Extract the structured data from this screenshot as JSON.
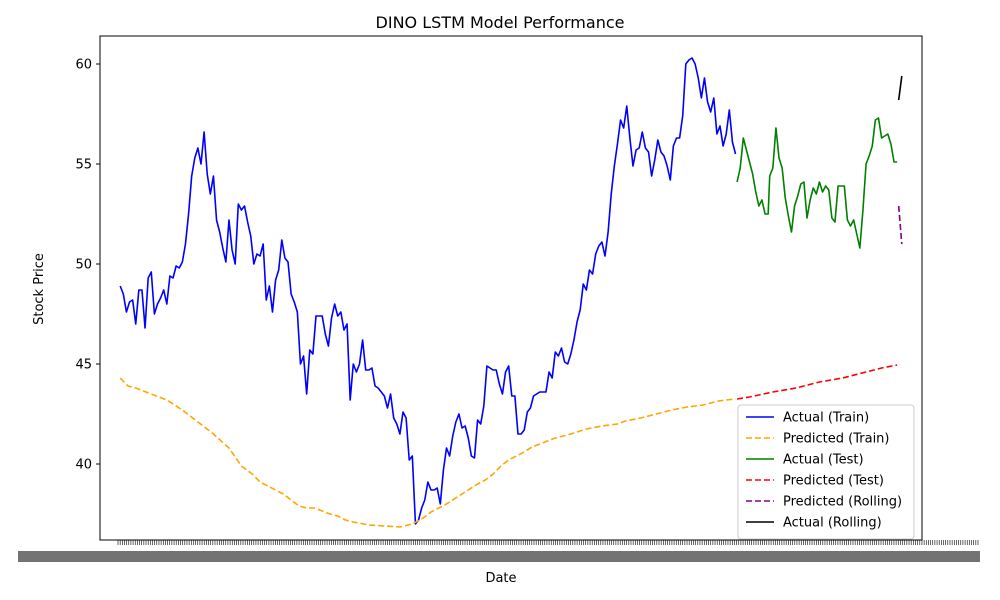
{
  "chart_data": {
    "type": "line",
    "title": "DINO LSTM Model Performance",
    "xlabel": "Date",
    "ylabel": "Stock Price",
    "ylim": [
      36.2,
      61.4
    ],
    "yticks": [
      40,
      45,
      50,
      55,
      60
    ],
    "x_tick_count": 400,
    "legend_position": "lower-right",
    "grid": false,
    "series": [
      {
        "name": "Actual (Train)",
        "color": "#0000ff",
        "dash": "solid",
        "points": [
          [
            0,
            48.9
          ],
          [
            2,
            48.5
          ],
          [
            4,
            47.6
          ],
          [
            6,
            48.1
          ],
          [
            8,
            48.2
          ],
          [
            10,
            47.0
          ],
          [
            12,
            48.7
          ],
          [
            14,
            48.7
          ],
          [
            16,
            46.8
          ],
          [
            18,
            49.3
          ],
          [
            20,
            49.6
          ],
          [
            22,
            47.5
          ],
          [
            24,
            48.0
          ],
          [
            26,
            48.3
          ],
          [
            28,
            48.7
          ],
          [
            30,
            48.0
          ],
          [
            32,
            49.4
          ],
          [
            34,
            49.3
          ],
          [
            36,
            49.9
          ],
          [
            38,
            49.8
          ],
          [
            40,
            50.1
          ],
          [
            42,
            51.0
          ],
          [
            44,
            52.5
          ],
          [
            46,
            54.4
          ],
          [
            48,
            55.3
          ],
          [
            50,
            55.8
          ],
          [
            52,
            55.0
          ],
          [
            54,
            56.6
          ],
          [
            56,
            54.5
          ],
          [
            58,
            53.5
          ],
          [
            60,
            54.4
          ],
          [
            62,
            52.2
          ],
          [
            64,
            51.6
          ],
          [
            66,
            50.8
          ],
          [
            68,
            50.1
          ],
          [
            70,
            52.2
          ],
          [
            72,
            50.7
          ],
          [
            74,
            50.0
          ],
          [
            76,
            53.0
          ],
          [
            78,
            52.7
          ],
          [
            80,
            52.9
          ],
          [
            82,
            52.1
          ],
          [
            84,
            51.4
          ],
          [
            86,
            50.0
          ],
          [
            88,
            50.5
          ],
          [
            90,
            50.4
          ],
          [
            92,
            51.0
          ],
          [
            94,
            48.2
          ],
          [
            96,
            48.9
          ],
          [
            98,
            47.6
          ],
          [
            100,
            49.2
          ],
          [
            102,
            49.7
          ],
          [
            104,
            51.2
          ],
          [
            106,
            50.3
          ],
          [
            108,
            50.1
          ],
          [
            110,
            48.5
          ],
          [
            112,
            48.1
          ],
          [
            114,
            47.6
          ],
          [
            116,
            45.0
          ],
          [
            118,
            45.4
          ],
          [
            120,
            43.5
          ],
          [
            122,
            45.7
          ],
          [
            124,
            45.5
          ],
          [
            126,
            47.4
          ],
          [
            128,
            47.4
          ],
          [
            130,
            47.4
          ],
          [
            132,
            46.5
          ],
          [
            134,
            45.9
          ],
          [
            136,
            47.3
          ],
          [
            138,
            48.0
          ],
          [
            140,
            47.4
          ],
          [
            142,
            47.6
          ],
          [
            144,
            46.7
          ],
          [
            146,
            47.0
          ],
          [
            148,
            43.2
          ],
          [
            150,
            45.0
          ],
          [
            152,
            44.6
          ],
          [
            154,
            45.0
          ],
          [
            156,
            46.2
          ],
          [
            158,
            44.7
          ],
          [
            160,
            44.7
          ],
          [
            162,
            44.8
          ],
          [
            164,
            43.9
          ],
          [
            166,
            43.8
          ],
          [
            168,
            43.6
          ],
          [
            170,
            43.4
          ],
          [
            172,
            42.8
          ],
          [
            174,
            43.5
          ],
          [
            176,
            42.3
          ],
          [
            178,
            42.0
          ],
          [
            180,
            41.5
          ],
          [
            182,
            42.6
          ],
          [
            184,
            42.3
          ],
          [
            186,
            40.2
          ],
          [
            188,
            40.4
          ],
          [
            190,
            37.0
          ],
          [
            192,
            37.2
          ],
          [
            194,
            37.8
          ],
          [
            196,
            38.2
          ],
          [
            198,
            39.1
          ],
          [
            200,
            38.7
          ],
          [
            202,
            38.7
          ],
          [
            204,
            38.8
          ],
          [
            206,
            38.0
          ],
          [
            208,
            39.7
          ],
          [
            210,
            40.8
          ],
          [
            212,
            40.4
          ],
          [
            214,
            41.4
          ],
          [
            216,
            42.1
          ],
          [
            218,
            42.5
          ],
          [
            220,
            41.8
          ],
          [
            222,
            41.9
          ],
          [
            224,
            41.3
          ],
          [
            226,
            40.4
          ],
          [
            228,
            40.3
          ],
          [
            230,
            42.2
          ],
          [
            232,
            42.0
          ],
          [
            234,
            42.9
          ],
          [
            236,
            44.9
          ],
          [
            238,
            44.8
          ],
          [
            240,
            44.7
          ],
          [
            242,
            44.7
          ],
          [
            244,
            44.0
          ],
          [
            246,
            43.5
          ],
          [
            248,
            44.6
          ],
          [
            250,
            44.9
          ],
          [
            252,
            43.4
          ],
          [
            254,
            43.4
          ],
          [
            256,
            41.5
          ],
          [
            258,
            41.5
          ],
          [
            260,
            41.7
          ],
          [
            262,
            42.6
          ],
          [
            264,
            42.8
          ],
          [
            266,
            43.4
          ],
          [
            268,
            43.5
          ],
          [
            270,
            43.6
          ],
          [
            272,
            43.6
          ],
          [
            274,
            43.6
          ],
          [
            276,
            44.6
          ],
          [
            278,
            44.3
          ],
          [
            280,
            45.6
          ],
          [
            282,
            45.4
          ],
          [
            284,
            45.8
          ],
          [
            286,
            45.1
          ],
          [
            288,
            45.0
          ],
          [
            290,
            45.5
          ],
          [
            292,
            46.2
          ],
          [
            294,
            47.1
          ],
          [
            296,
            47.7
          ],
          [
            298,
            49.0
          ],
          [
            300,
            48.7
          ],
          [
            302,
            49.7
          ],
          [
            304,
            49.5
          ],
          [
            306,
            50.5
          ],
          [
            308,
            50.9
          ],
          [
            310,
            51.1
          ],
          [
            312,
            50.4
          ],
          [
            314,
            51.6
          ],
          [
            316,
            53.5
          ],
          [
            318,
            54.9
          ],
          [
            320,
            56.0
          ],
          [
            322,
            57.2
          ],
          [
            324,
            56.8
          ],
          [
            326,
            57.9
          ],
          [
            328,
            56.3
          ],
          [
            330,
            54.9
          ],
          [
            332,
            55.7
          ],
          [
            334,
            55.8
          ],
          [
            336,
            56.6
          ],
          [
            338,
            55.8
          ],
          [
            340,
            55.6
          ],
          [
            342,
            54.4
          ],
          [
            344,
            55.2
          ],
          [
            346,
            56.2
          ],
          [
            348,
            55.6
          ],
          [
            350,
            55.4
          ],
          [
            352,
            54.9
          ],
          [
            354,
            54.2
          ],
          [
            356,
            55.9
          ],
          [
            358,
            56.3
          ],
          [
            360,
            56.3
          ],
          [
            362,
            57.4
          ],
          [
            364,
            60.0
          ],
          [
            366,
            60.2
          ],
          [
            368,
            60.3
          ],
          [
            370,
            60.0
          ],
          [
            372,
            59.3
          ],
          [
            374,
            58.3
          ],
          [
            376,
            59.3
          ],
          [
            378,
            58.1
          ],
          [
            380,
            57.6
          ],
          [
            382,
            58.3
          ],
          [
            384,
            56.5
          ],
          [
            386,
            56.9
          ],
          [
            388,
            55.9
          ],
          [
            390,
            56.5
          ],
          [
            392,
            57.7
          ],
          [
            394,
            56.1
          ],
          [
            396,
            55.5
          ]
        ]
      },
      {
        "name": "Predicted (Train)",
        "color": "#ffa500",
        "dash": "dashed",
        "points": [
          [
            0,
            44.3
          ],
          [
            5,
            43.9
          ],
          [
            10,
            43.8
          ],
          [
            20,
            43.5
          ],
          [
            30,
            43.2
          ],
          [
            40,
            42.7
          ],
          [
            50,
            42.1
          ],
          [
            60,
            41.5
          ],
          [
            70,
            40.8
          ],
          [
            78,
            39.9
          ],
          [
            85,
            39.5
          ],
          [
            90,
            39.1
          ],
          [
            100,
            38.7
          ],
          [
            105,
            38.5
          ],
          [
            110,
            38.2
          ],
          [
            115,
            37.9
          ],
          [
            120,
            37.8
          ],
          [
            125,
            37.8
          ],
          [
            135,
            37.5
          ],
          [
            140,
            37.4
          ],
          [
            145,
            37.2
          ],
          [
            150,
            37.1
          ],
          [
            160,
            36.95
          ],
          [
            170,
            36.9
          ],
          [
            180,
            36.85
          ],
          [
            188,
            37.0
          ],
          [
            195,
            37.3
          ],
          [
            200,
            37.6
          ],
          [
            210,
            38.0
          ],
          [
            220,
            38.5
          ],
          [
            230,
            39.0
          ],
          [
            235,
            39.2
          ],
          [
            240,
            39.5
          ],
          [
            245,
            39.9
          ],
          [
            250,
            40.2
          ],
          [
            260,
            40.6
          ],
          [
            265,
            40.85
          ],
          [
            270,
            41.0
          ],
          [
            280,
            41.3
          ],
          [
            290,
            41.5
          ],
          [
            300,
            41.75
          ],
          [
            310,
            41.9
          ],
          [
            320,
            42.0
          ],
          [
            325,
            42.15
          ],
          [
            335,
            42.3
          ],
          [
            345,
            42.5
          ],
          [
            355,
            42.7
          ],
          [
            365,
            42.85
          ],
          [
            375,
            42.95
          ],
          [
            385,
            43.15
          ],
          [
            390,
            43.2
          ],
          [
            396,
            43.25
          ]
        ]
      },
      {
        "name": "Actual (Test)",
        "color": "#008000",
        "dash": "solid",
        "points": [
          [
            397,
            54.1
          ],
          [
            399,
            54.8
          ],
          [
            401,
            56.3
          ],
          [
            403,
            55.7
          ],
          [
            405,
            55.1
          ],
          [
            407,
            54.5
          ],
          [
            409,
            53.6
          ],
          [
            411,
            52.9
          ],
          [
            413,
            53.2
          ],
          [
            415,
            52.5
          ],
          [
            417,
            52.5
          ],
          [
            418,
            54.4
          ],
          [
            420,
            54.8
          ],
          [
            422,
            56.8
          ],
          [
            424,
            55.3
          ],
          [
            426,
            54.8
          ],
          [
            428,
            53.3
          ],
          [
            430,
            52.4
          ],
          [
            432,
            51.6
          ],
          [
            434,
            52.9
          ],
          [
            436,
            53.4
          ],
          [
            438,
            54.0
          ],
          [
            440,
            54.1
          ],
          [
            442,
            52.3
          ],
          [
            444,
            53.2
          ],
          [
            446,
            53.8
          ],
          [
            448,
            53.5
          ],
          [
            450,
            54.1
          ],
          [
            452,
            53.6
          ],
          [
            454,
            53.9
          ],
          [
            456,
            53.7
          ],
          [
            458,
            52.3
          ],
          [
            460,
            52.1
          ],
          [
            462,
            53.9
          ],
          [
            464,
            53.9
          ],
          [
            466,
            53.9
          ],
          [
            468,
            52.2
          ],
          [
            470,
            51.9
          ],
          [
            472,
            52.2
          ],
          [
            474,
            51.5
          ],
          [
            476,
            50.8
          ],
          [
            478,
            52.7
          ],
          [
            480,
            55.0
          ],
          [
            482,
            55.4
          ],
          [
            484,
            55.9
          ],
          [
            486,
            57.2
          ],
          [
            488,
            57.3
          ],
          [
            490,
            56.3
          ],
          [
            492,
            56.4
          ],
          [
            494,
            56.5
          ],
          [
            496,
            56.0
          ],
          [
            498,
            55.1
          ],
          [
            500,
            55.1
          ]
        ]
      },
      {
        "name": "Predicted (Test)",
        "color": "#ff0000",
        "dash": "dashed",
        "points": [
          [
            397,
            43.25
          ],
          [
            405,
            43.35
          ],
          [
            420,
            43.6
          ],
          [
            435,
            43.8
          ],
          [
            450,
            44.1
          ],
          [
            465,
            44.3
          ],
          [
            480,
            44.6
          ],
          [
            490,
            44.8
          ],
          [
            500,
            44.95
          ]
        ]
      },
      {
        "name": "Predicted (Rolling)",
        "color": "#800080",
        "dash": "dashed",
        "points": [
          [
            501,
            52.9
          ],
          [
            503,
            51.0
          ]
        ]
      },
      {
        "name": "Actual (Rolling)",
        "color": "#000000",
        "dash": "solid",
        "points": [
          [
            501,
            58.2
          ],
          [
            503,
            59.4
          ]
        ]
      }
    ]
  }
}
